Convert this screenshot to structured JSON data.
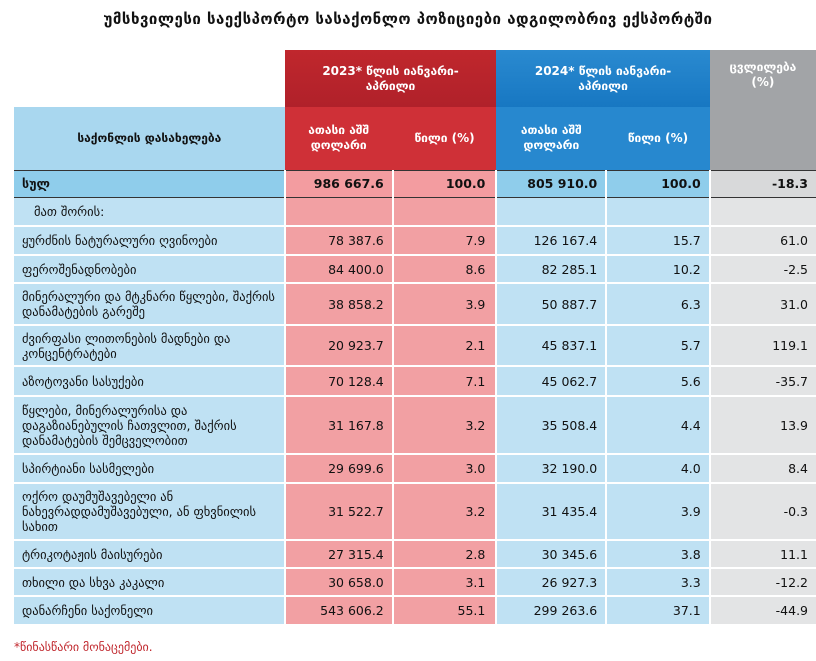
{
  "title": "უმსხვილესი საექსპორტო სასაქონლო პოზიციები ადგილობრივ ექსპორტში",
  "header": {
    "col_name": "საქონლის დასახელება",
    "period_2023": "2023* წლის იანვარი-აპრილი",
    "period_2024": "2024* წლის იანვარი-აპრილი",
    "change": "ცვლილება (%)",
    "value_label": "ათასი აშშ დოლარი",
    "share_label": "წილი (%)"
  },
  "total": {
    "name": "სულ",
    "v2023": "986 667.6",
    "s2023": "100.0",
    "v2024": "805 910.0",
    "s2024": "100.0",
    "change": "-18.3"
  },
  "of_which": "მათ შორის:",
  "rows": [
    {
      "name": "ყურძნის ნატურალური ღვინოები",
      "v2023": "78 387.6",
      "s2023": "7.9",
      "v2024": "126 167.4",
      "s2024": "15.7",
      "change": "61.0"
    },
    {
      "name": "ფეროშენადნობები",
      "v2023": "84 400.0",
      "s2023": "8.6",
      "v2024": "82 285.1",
      "s2024": "10.2",
      "change": "-2.5"
    },
    {
      "name": "მინერალური და მტკნარი წყლები, შაქრის დანამატების გარეშე",
      "v2023": "38 858.2",
      "s2023": "3.9",
      "v2024": "50 887.7",
      "s2024": "6.3",
      "change": "31.0"
    },
    {
      "name": "ძვირფასი ლითონების მადნები და კონცენტრატები",
      "v2023": "20 923.7",
      "s2023": "2.1",
      "v2024": "45 837.1",
      "s2024": "5.7",
      "change": "119.1"
    },
    {
      "name": "აზოტოვანი სასუქები",
      "v2023": "70 128.4",
      "s2023": "7.1",
      "v2024": "45 062.7",
      "s2024": "5.6",
      "change": "-35.7"
    },
    {
      "name": "წყლები, მინერალურისა და დაგაზიანებულის ჩათვლით, შაქრის დანამატების შემცველობით",
      "v2023": "31 167.8",
      "s2023": "3.2",
      "v2024": "35 508.4",
      "s2024": "4.4",
      "change": "13.9"
    },
    {
      "name": "სპირტიანი სასმელები",
      "v2023": "29 699.6",
      "s2023": "3.0",
      "v2024": "32 190.0",
      "s2024": "4.0",
      "change": "8.4"
    },
    {
      "name": "ოქრო დაუმუშავებელი ან ნახევრადდამუშავებული, ან ფხვნილის სახით",
      "v2023": "31 522.7",
      "s2023": "3.2",
      "v2024": "31 435.4",
      "s2024": "3.9",
      "change": "-0.3"
    },
    {
      "name": "ტრიკოტაჟის მაისურები",
      "v2023": "27 315.4",
      "s2023": "2.8",
      "v2024": "30 345.6",
      "s2024": "3.8",
      "change": "11.1"
    },
    {
      "name": "თხილი და სხვა კაკალი",
      "v2023": "30 658.0",
      "s2023": "3.1",
      "v2024": "26 927.3",
      "s2024": "3.3",
      "change": "-12.2"
    },
    {
      "name": "დანარჩენი საქონელი",
      "v2023": "543 606.2",
      "s2023": "55.1",
      "v2024": "299 263.6",
      "s2024": "37.1",
      "change": "-44.9"
    }
  ],
  "footnote": "*წინასწარი მონაცემები."
}
